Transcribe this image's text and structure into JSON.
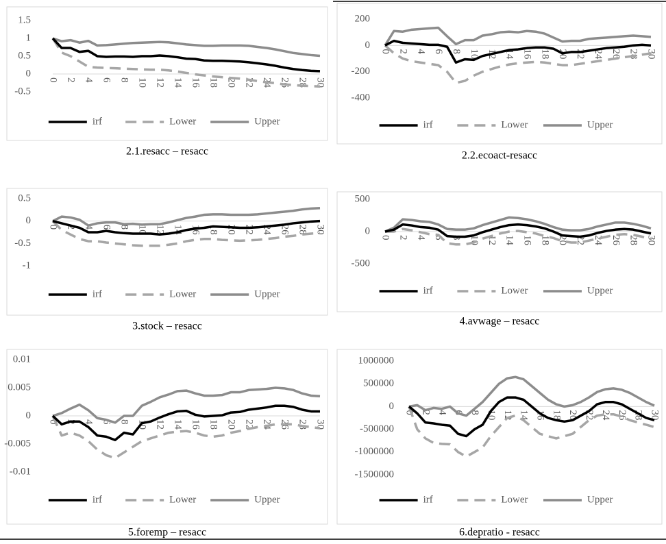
{
  "chart_data": [
    {
      "type": "line",
      "title": "2.1.resacc – resacc",
      "categories": [
        "0",
        null,
        "2",
        null,
        "4",
        null,
        "6",
        null,
        "8",
        null,
        "10",
        null,
        "12",
        null,
        "14",
        null,
        "16",
        null,
        "18",
        null,
        "20",
        null,
        "22",
        null,
        "24",
        null,
        "26",
        null,
        "28",
        null,
        "30"
      ],
      "series": [
        {
          "name": "irf",
          "color": "#000000",
          "line_style": "solid",
          "values": [
            1,
            0.73,
            0.73,
            0.62,
            0.65,
            0.5,
            0.48,
            0.49,
            0.49,
            0.48,
            0.5,
            0.5,
            0.52,
            0.5,
            0.47,
            0.43,
            0.42,
            0.38,
            0.37,
            0.37,
            0.36,
            0.35,
            0.33,
            0.3,
            0.27,
            0.23,
            0.18,
            0.14,
            0.11,
            0.09,
            0.08
          ]
        },
        {
          "name": "Lower",
          "color": "#a6a6a6",
          "line_style": "dashed",
          "values": [
            1,
            0.6,
            0.5,
            0.35,
            0.2,
            0.18,
            0.17,
            0.16,
            0.15,
            0.14,
            0.13,
            0.12,
            0.12,
            0.1,
            0.07,
            0.03,
            -0.01,
            -0.04,
            -0.07,
            -0.09,
            -0.11,
            -0.13,
            -0.16,
            -0.2,
            -0.23,
            -0.26,
            -0.29,
            -0.31,
            -0.33,
            -0.34,
            -0.35
          ]
        },
        {
          "name": "Upper",
          "color": "#8c8c8c",
          "line_style": "solid",
          "values": [
            1,
            0.92,
            0.95,
            0.88,
            0.93,
            0.8,
            0.81,
            0.83,
            0.85,
            0.87,
            0.88,
            0.89,
            0.9,
            0.89,
            0.86,
            0.83,
            0.81,
            0.79,
            0.79,
            0.8,
            0.8,
            0.8,
            0.79,
            0.76,
            0.73,
            0.69,
            0.64,
            0.59,
            0.56,
            0.53,
            0.51
          ]
        }
      ],
      "ylim": [
        -0.5,
        1.5
      ],
      "yticks": [
        1.5,
        1,
        0.5,
        0,
        -0.5
      ],
      "legend": "bottom"
    },
    {
      "type": "line",
      "title": "2.2.ecoact-resacc",
      "categories": [
        "0",
        null,
        "2",
        null,
        "4",
        null,
        "6",
        null,
        "8",
        null,
        "10",
        null,
        "12",
        null,
        "14",
        null,
        "16",
        null,
        "18",
        null,
        "20",
        null,
        "22",
        null,
        "24",
        null,
        "26",
        null,
        "28",
        null,
        "30"
      ],
      "series": [
        {
          "name": "irf",
          "color": "#000000",
          "line_style": "solid",
          "values": [
            0,
            35,
            20,
            15,
            10,
            5,
            5,
            -10,
            -130,
            -105,
            -110,
            -80,
            -65,
            -50,
            -35,
            -30,
            -20,
            -15,
            -15,
            -25,
            -60,
            -50,
            -50,
            -40,
            -30,
            -20,
            -15,
            -10,
            0,
            5,
            0
          ]
        },
        {
          "name": "Lower",
          "color": "#a6a6a6",
          "line_style": "dashed",
          "values": [
            0,
            -60,
            -100,
            -120,
            -130,
            -140,
            -150,
            -200,
            -285,
            -270,
            -230,
            -200,
            -180,
            -160,
            -145,
            -135,
            -130,
            -125,
            -130,
            -140,
            -150,
            -150,
            -140,
            -130,
            -120,
            -110,
            -100,
            -90,
            -80,
            -70,
            -60
          ]
        },
        {
          "name": "Upper",
          "color": "#8c8c8c",
          "line_style": "solid",
          "values": [
            0,
            110,
            105,
            120,
            125,
            130,
            135,
            70,
            10,
            40,
            40,
            75,
            85,
            100,
            105,
            100,
            110,
            105,
            90,
            60,
            30,
            35,
            35,
            50,
            55,
            60,
            65,
            70,
            75,
            70,
            65
          ]
        }
      ],
      "ylim": [
        -400,
        200
      ],
      "yticks": [
        200,
        0,
        -200,
        -400
      ],
      "legend": "bottom"
    },
    {
      "type": "line",
      "title": "3.stock – resacc",
      "categories": [
        "0",
        null,
        "2",
        null,
        "4",
        null,
        "6",
        null,
        "8",
        null,
        "10",
        null,
        "12",
        null,
        "14",
        null,
        "16",
        null,
        "18",
        null,
        "20",
        null,
        "22",
        null,
        "24",
        null,
        "26",
        null,
        "28",
        null,
        "30"
      ],
      "series": [
        {
          "name": "irf",
          "color": "#000000",
          "line_style": "solid",
          "values": [
            0,
            -0.05,
            -0.1,
            -0.15,
            -0.25,
            -0.25,
            -0.22,
            -0.25,
            -0.27,
            -0.28,
            -0.28,
            -0.28,
            -0.3,
            -0.28,
            -0.25,
            -0.2,
            -0.17,
            -0.15,
            -0.12,
            -0.13,
            -0.14,
            -0.15,
            -0.15,
            -0.14,
            -0.12,
            -0.1,
            -0.08,
            -0.05,
            -0.03,
            -0.01,
            0
          ]
        },
        {
          "name": "Lower",
          "color": "#a6a6a6",
          "line_style": "dashed",
          "values": [
            0,
            -0.2,
            -0.3,
            -0.4,
            -0.45,
            -0.45,
            -0.48,
            -0.5,
            -0.52,
            -0.54,
            -0.55,
            -0.55,
            -0.55,
            -0.53,
            -0.5,
            -0.45,
            -0.42,
            -0.4,
            -0.4,
            -0.42,
            -0.43,
            -0.44,
            -0.43,
            -0.42,
            -0.4,
            -0.38,
            -0.35,
            -0.33,
            -0.3,
            -0.28,
            -0.27
          ]
        },
        {
          "name": "Upper",
          "color": "#8c8c8c",
          "line_style": "solid",
          "values": [
            0,
            0.1,
            0.08,
            0.03,
            -0.1,
            -0.05,
            -0.03,
            -0.03,
            -0.07,
            -0.06,
            -0.08,
            -0.07,
            -0.07,
            -0.03,
            0.02,
            0.07,
            0.1,
            0.14,
            0.15,
            0.15,
            0.14,
            0.14,
            0.14,
            0.15,
            0.17,
            0.19,
            0.21,
            0.23,
            0.26,
            0.28,
            0.29
          ]
        }
      ],
      "ylim": [
        -1,
        0.5
      ],
      "yticks": [
        0.5,
        0,
        -0.5,
        -1
      ],
      "legend": "bottom"
    },
    {
      "type": "line",
      "title": "4.avwage – resacc",
      "categories": [
        "0",
        null,
        "2",
        null,
        "4",
        null,
        "6",
        null,
        "8",
        null,
        "10",
        null,
        "12",
        null,
        "14",
        null,
        "16",
        null,
        "18",
        null,
        "20",
        null,
        "22",
        null,
        "24",
        null,
        "26",
        null,
        "28",
        null,
        "30"
      ],
      "series": [
        {
          "name": "irf",
          "color": "#000000",
          "line_style": "solid",
          "values": [
            0,
            30,
            110,
            95,
            70,
            60,
            30,
            -70,
            -80,
            -80,
            -60,
            -10,
            30,
            70,
            100,
            110,
            100,
            80,
            50,
            0,
            -60,
            -70,
            -80,
            -60,
            -20,
            10,
            30,
            40,
            30,
            0,
            -30
          ]
        },
        {
          "name": "Lower",
          "color": "#a6a6a6",
          "line_style": "dashed",
          "values": [
            0,
            0,
            40,
            20,
            -10,
            -40,
            -50,
            -180,
            -200,
            -200,
            -170,
            -110,
            -70,
            -30,
            0,
            10,
            -10,
            -30,
            -70,
            -100,
            -150,
            -170,
            -170,
            -140,
            -110,
            -80,
            -50,
            -40,
            -50,
            -80,
            -110
          ]
        },
        {
          "name": "Upper",
          "color": "#8c8c8c",
          "line_style": "solid",
          "values": [
            0,
            60,
            190,
            180,
            160,
            150,
            110,
            40,
            30,
            30,
            50,
            100,
            140,
            180,
            220,
            210,
            190,
            160,
            120,
            70,
            30,
            20,
            20,
            40,
            80,
            110,
            140,
            140,
            120,
            90,
            50
          ]
        }
      ],
      "ylim": [
        -500,
        500
      ],
      "yticks": [
        500,
        0,
        -500
      ],
      "legend": "bottom"
    },
    {
      "type": "line",
      "title": "5.foremp – resacc",
      "categories": [
        "0",
        null,
        "2",
        null,
        "4",
        null,
        "6",
        null,
        "8",
        null,
        "10",
        null,
        "12",
        null,
        "14",
        null,
        "16",
        null,
        "18",
        null,
        "20",
        null,
        "22",
        null,
        "24",
        null,
        "26",
        null,
        "28",
        null,
        "30"
      ],
      "series": [
        {
          "name": "irf",
          "color": "#000000",
          "line_style": "solid",
          "values": [
            0,
            -0.0015,
            -0.001,
            -0.001,
            -0.002,
            -0.0035,
            -0.0037,
            -0.0043,
            -0.003,
            -0.0033,
            -0.0013,
            -0.001,
            -0.0003,
            0.0003,
            0.0008,
            0.0009,
            0.0002,
            -0.0001,
            0,
            0.0001,
            0.0006,
            0.0007,
            0.0011,
            0.0013,
            0.0015,
            0.0018,
            0.0018,
            0.0016,
            0.0011,
            0.0008,
            0.0008
          ]
        },
        {
          "name": "Lower",
          "color": "#a6a6a6",
          "line_style": "dashed",
          "values": [
            0,
            -0.0035,
            -0.003,
            -0.0035,
            -0.0045,
            -0.006,
            -0.007,
            -0.0075,
            -0.0065,
            -0.0055,
            -0.0045,
            -0.004,
            -0.0035,
            -0.003,
            -0.0028,
            -0.0027,
            -0.003,
            -0.0035,
            -0.0037,
            -0.0035,
            -0.003,
            -0.0027,
            -0.0023,
            -0.002,
            -0.0018,
            -0.0015,
            -0.0015,
            -0.0015,
            -0.0018,
            -0.002,
            -0.0022
          ]
        },
        {
          "name": "Upper",
          "color": "#8c8c8c",
          "line_style": "solid",
          "values": [
            0,
            0.0005,
            0.0013,
            0.002,
            0.001,
            -0.0004,
            -0.0007,
            -0.0012,
            0,
            0,
            0.0018,
            0.0025,
            0.0033,
            0.0038,
            0.0044,
            0.0045,
            0.004,
            0.0036,
            0.0036,
            0.0037,
            0.0042,
            0.0042,
            0.0046,
            0.0047,
            0.0048,
            0.005,
            0.0049,
            0.0046,
            0.004,
            0.0036,
            0.0035
          ]
        }
      ],
      "ylim": [
        -0.01,
        0.01
      ],
      "yticks": [
        0.01,
        0.005,
        0,
        -0.005,
        -0.01
      ],
      "legend": "bottom"
    },
    {
      "type": "line",
      "title": "6.depratio - resacc",
      "categories": [
        "0",
        null,
        "2",
        null,
        "4",
        null,
        "6",
        null,
        "8",
        null,
        "10",
        null,
        "12",
        null,
        "14",
        null,
        "16",
        null,
        "18",
        null,
        "20",
        null,
        "22",
        null,
        "24",
        null,
        "26",
        null,
        "28",
        null,
        "30"
      ],
      "series": [
        {
          "name": "irf",
          "color": "#000000",
          "line_style": "solid",
          "values": [
            0,
            -150000,
            -350000,
            -370000,
            -400000,
            -420000,
            -600000,
            -650000,
            -500000,
            -400000,
            -100000,
            100000,
            200000,
            200000,
            150000,
            0,
            -150000,
            -250000,
            -300000,
            -330000,
            -300000,
            -200000,
            -100000,
            50000,
            100000,
            100000,
            50000,
            -50000,
            -150000,
            -250000,
            -300000
          ]
        },
        {
          "name": "Lower",
          "color": "#a6a6a6",
          "line_style": "dashed",
          "values": [
            0,
            -500000,
            -700000,
            -800000,
            -820000,
            -830000,
            -1000000,
            -1100000,
            -1000000,
            -900000,
            -650000,
            -450000,
            -250000,
            -200000,
            -300000,
            -450000,
            -600000,
            -650000,
            -700000,
            -650000,
            -600000,
            -450000,
            -300000,
            -200000,
            -170000,
            -170000,
            -220000,
            -300000,
            -350000,
            -400000,
            -450000
          ]
        },
        {
          "name": "Upper",
          "color": "#8c8c8c",
          "line_style": "solid",
          "values": [
            0,
            30000,
            -80000,
            -30000,
            -50000,
            0,
            -150000,
            -200000,
            -50000,
            100000,
            300000,
            500000,
            620000,
            650000,
            600000,
            450000,
            300000,
            150000,
            50000,
            0,
            30000,
            100000,
            200000,
            320000,
            380000,
            400000,
            370000,
            300000,
            200000,
            100000,
            20000
          ]
        }
      ],
      "ylim": [
        -1500000,
        1000000
      ],
      "yticks": [
        1000000,
        500000,
        0,
        -500000,
        -1000000,
        -1500000
      ],
      "legend": "bottom"
    }
  ]
}
